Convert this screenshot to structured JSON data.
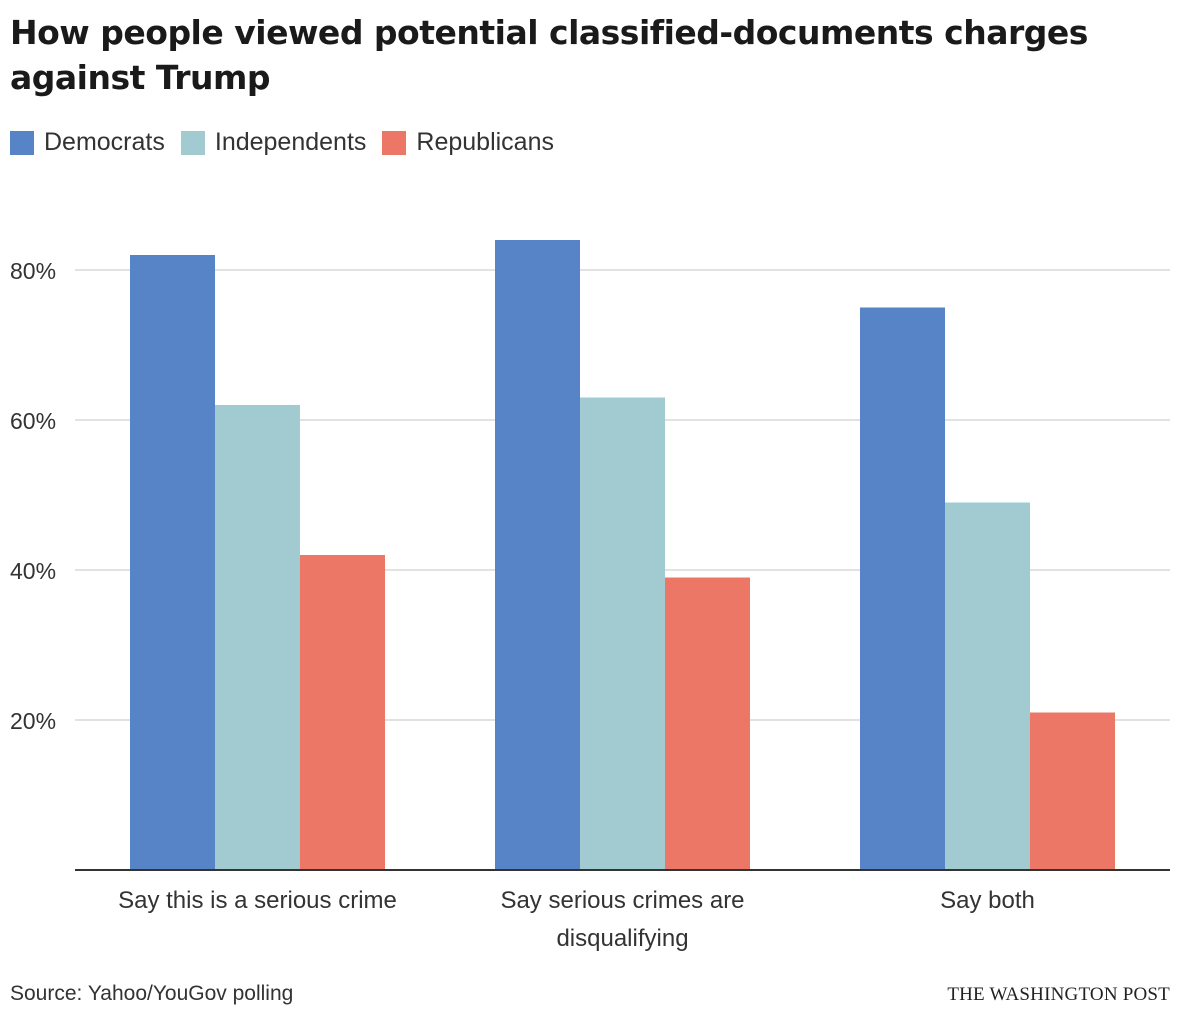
{
  "chart_data": {
    "type": "bar",
    "title": "How people viewed potential classified-documents charges against Trump",
    "categories": [
      [
        "Say this is a serious crime"
      ],
      [
        "Say serious crimes are",
        "disqualifying"
      ],
      [
        "Say both"
      ]
    ],
    "series": [
      {
        "name": "Democrats",
        "color": "#5684c6",
        "values": [
          82,
          84,
          75
        ]
      },
      {
        "name": "Independents",
        "color": "#a1cbd1",
        "values": [
          62,
          63,
          49
        ]
      },
      {
        "name": "Republicans",
        "color": "#ec7767",
        "values": [
          42,
          39,
          21
        ]
      }
    ],
    "ylim": [
      0,
      90
    ],
    "yticks": [
      20,
      40,
      60,
      80
    ],
    "ytick_labels": [
      "20%",
      "40%",
      "60%",
      "80%"
    ],
    "grid": true,
    "xlabel": "",
    "ylabel": "",
    "legend_position": "top-left"
  },
  "legend": [
    {
      "label": "Democrats",
      "color": "#5684c6"
    },
    {
      "label": "Independents",
      "color": "#a1cbd1"
    },
    {
      "label": "Republicans",
      "color": "#ec7767"
    }
  ],
  "footer": {
    "source": "Source: Yahoo/YouGov polling",
    "credit": "THE WASHINGTON POST"
  }
}
